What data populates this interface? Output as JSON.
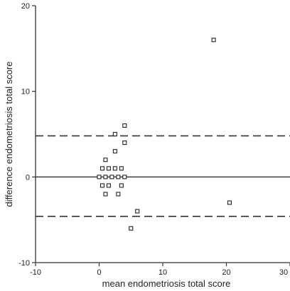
{
  "chart_data": {
    "type": "scatter",
    "title": "",
    "xlabel": "mean endometriosis total score",
    "ylabel": "difference endometriosis total score",
    "xlim": [
      -10,
      30
    ],
    "ylim": [
      -10,
      20
    ],
    "xticks": [
      -10,
      0,
      10,
      20,
      30
    ],
    "yticks": [
      -10,
      0,
      10,
      20
    ],
    "xtick_labels": [
      "-10",
      "0",
      "10",
      "20",
      "30"
    ],
    "ytick_labels": [
      "-10",
      "0",
      "10",
      "20"
    ],
    "grid": false,
    "reference_lines": [
      {
        "y": 0,
        "style": "solid"
      },
      {
        "y": 4.8,
        "style": "dashed"
      },
      {
        "y": -4.6,
        "style": "dashed"
      }
    ],
    "points": [
      {
        "x": 18.0,
        "y": 16.0
      },
      {
        "x": 4.0,
        "y": 6.0
      },
      {
        "x": 2.5,
        "y": 5.0
      },
      {
        "x": 4.0,
        "y": 4.0
      },
      {
        "x": 2.5,
        "y": 3.0
      },
      {
        "x": 1.0,
        "y": 2.0
      },
      {
        "x": 0.5,
        "y": 1.0
      },
      {
        "x": 1.5,
        "y": 1.0
      },
      {
        "x": 2.5,
        "y": 1.0
      },
      {
        "x": 3.5,
        "y": 1.0
      },
      {
        "x": 0.0,
        "y": 0.0
      },
      {
        "x": 1.0,
        "y": 0.0
      },
      {
        "x": 2.0,
        "y": 0.0
      },
      {
        "x": 3.0,
        "y": 0.0
      },
      {
        "x": 4.0,
        "y": 0.0
      },
      {
        "x": 0.5,
        "y": -1.0
      },
      {
        "x": 1.5,
        "y": -1.0
      },
      {
        "x": 3.5,
        "y": -1.0
      },
      {
        "x": 1.0,
        "y": -2.0
      },
      {
        "x": 3.0,
        "y": -2.0
      },
      {
        "x": 6.0,
        "y": -4.0
      },
      {
        "x": 5.0,
        "y": -6.0
      },
      {
        "x": 20.5,
        "y": -3.0
      }
    ]
  }
}
